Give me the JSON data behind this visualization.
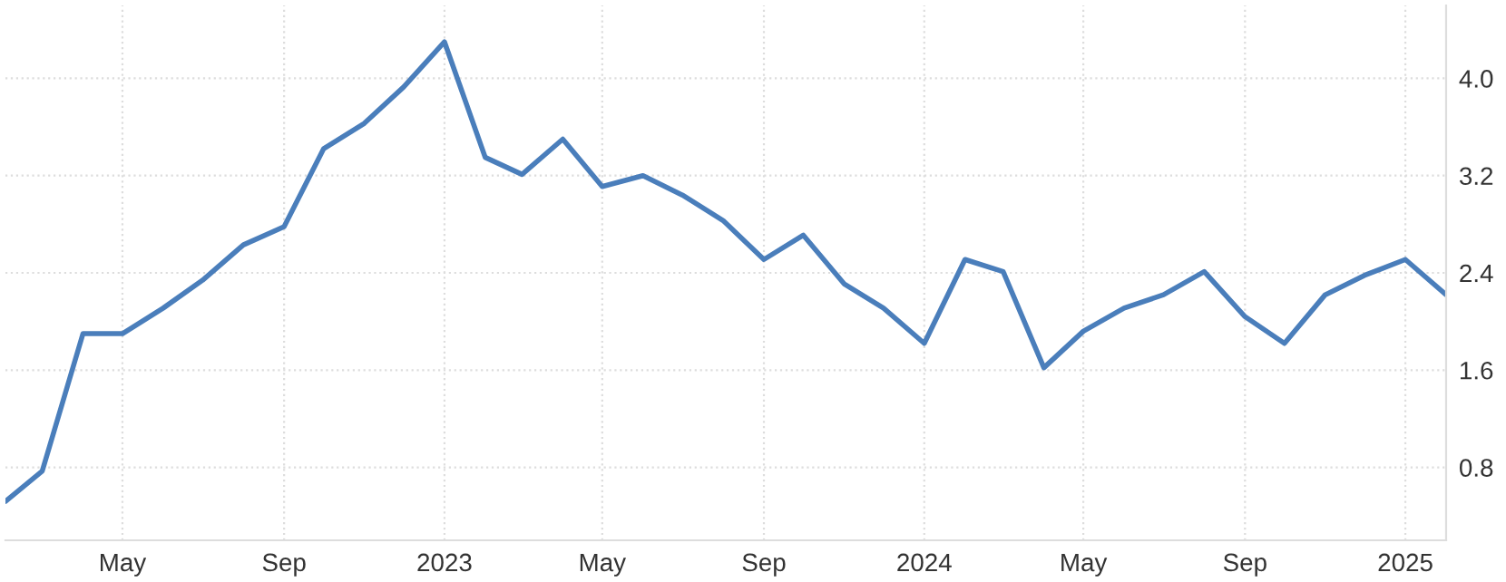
{
  "chart_data": {
    "type": "line",
    "x": [
      "2022-02",
      "2022-03",
      "2022-04",
      "2022-05",
      "2022-06",
      "2022-07",
      "2022-08",
      "2022-09",
      "2022-10",
      "2022-11",
      "2022-12",
      "2023-01",
      "2023-02",
      "2023-03",
      "2023-04",
      "2023-05",
      "2023-06",
      "2023-07",
      "2023-08",
      "2023-09",
      "2023-10",
      "2023-11",
      "2023-12",
      "2024-01",
      "2024-02",
      "2024-03",
      "2024-04",
      "2024-05",
      "2024-06",
      "2024-07",
      "2024-08",
      "2024-09",
      "2024-10",
      "2024-11",
      "2024-12",
      "2025-01",
      "2025-02"
    ],
    "series": [
      {
        "color": "#4a7ebb",
        "values": [
          0.52,
          0.77,
          1.9,
          1.9,
          2.11,
          2.34,
          2.63,
          2.78,
          3.42,
          3.63,
          3.93,
          4.3,
          3.35,
          3.21,
          3.5,
          3.11,
          3.2,
          3.04,
          2.83,
          2.51,
          2.71,
          2.31,
          2.11,
          1.82,
          2.51,
          2.41,
          1.62,
          1.92,
          2.11,
          2.22,
          2.41,
          2.04,
          1.82,
          2.22,
          2.38,
          2.51,
          2.22
        ]
      }
    ],
    "xlim": [
      "2022-02",
      "2025-02"
    ],
    "xticks": [
      {
        "value": "2022-05",
        "label": "May"
      },
      {
        "value": "2022-09",
        "label": "Sep"
      },
      {
        "value": "2023-01",
        "label": "2023"
      },
      {
        "value": "2023-05",
        "label": "May"
      },
      {
        "value": "2023-09",
        "label": "Sep"
      },
      {
        "value": "2024-01",
        "label": "2024"
      },
      {
        "value": "2024-05",
        "label": "May"
      },
      {
        "value": "2024-09",
        "label": "Sep"
      },
      {
        "value": "2025-01",
        "label": "2025"
      }
    ],
    "ylim": [
      0.2,
      4.6
    ],
    "yticks": [
      {
        "value": 0.8,
        "label": "0.8"
      },
      {
        "value": 1.6,
        "label": "1.6"
      },
      {
        "value": 2.4,
        "label": "2.4"
      },
      {
        "value": 3.2,
        "label": "3.2"
      },
      {
        "value": 4.0,
        "label": "4.0"
      }
    ],
    "grid": true,
    "line_style": "solid"
  }
}
